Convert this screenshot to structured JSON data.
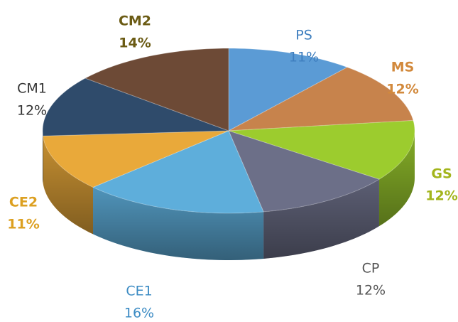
{
  "chart_data": {
    "type": "pie",
    "categories": [
      "PS",
      "MS",
      "GS",
      "CP",
      "CE1",
      "CE2",
      "CM1",
      "CM2"
    ],
    "values": [
      11,
      12,
      12,
      12,
      16,
      11,
      12,
      14
    ],
    "value_labels": [
      "11%",
      "12%",
      "12%",
      "12%",
      "16%",
      "11%",
      "12%",
      "14%"
    ],
    "colors": [
      "#5b9bd5",
      "#c7834c",
      "#9ccc2e",
      "#6c6f88",
      "#5eaedb",
      "#e9a93a",
      "#2f4b6b",
      "#6d4a36"
    ],
    "label_colors": [
      "#3f7fbf",
      "#d2893c",
      "#a3b51c",
      "#555555",
      "#3d8cc4",
      "#dca021",
      "#333333",
      "#6b5b14"
    ]
  }
}
